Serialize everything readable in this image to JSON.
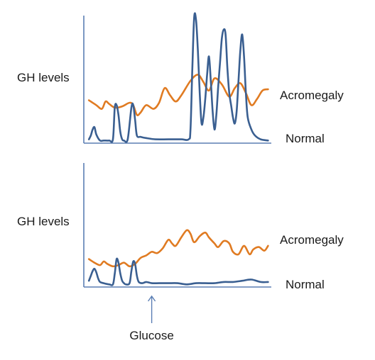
{
  "colors": {
    "normal": "#3a5f91",
    "acromegaly": "#e07b22",
    "axis": "#5b7fb4",
    "arrow": "#5b7fb4"
  },
  "chart_data": [
    {
      "type": "line",
      "ylabel": "GH levels",
      "xlim": [
        0,
        100
      ],
      "ylim": [
        0,
        100
      ],
      "series": [
        {
          "name": "Acromegaly",
          "color_key": "acromegaly",
          "points": [
            [
              2,
              34
            ],
            [
              6,
              30
            ],
            [
              9,
              27
            ],
            [
              11,
              33
            ],
            [
              13,
              31
            ],
            [
              16,
              28
            ],
            [
              20,
              29
            ],
            [
              24,
              32
            ],
            [
              26,
              30
            ],
            [
              28,
              22
            ],
            [
              30,
              24
            ],
            [
              33,
              30
            ],
            [
              37,
              27
            ],
            [
              40,
              32
            ],
            [
              43,
              44
            ],
            [
              46,
              38
            ],
            [
              49,
              33
            ],
            [
              52,
              38
            ],
            [
              57,
              50
            ],
            [
              61,
              55
            ],
            [
              64,
              49
            ],
            [
              67,
              42
            ],
            [
              70,
              52
            ],
            [
              74,
              47
            ],
            [
              78,
              37
            ],
            [
              81,
              44
            ],
            [
              84,
              48
            ],
            [
              87,
              40
            ],
            [
              90,
              30
            ],
            [
              93,
              35
            ],
            [
              96,
              42
            ],
            [
              99,
              43
            ]
          ]
        },
        {
          "name": "Normal",
          "color_key": "normal",
          "points": [
            [
              2,
              2
            ],
            [
              3,
              5
            ],
            [
              4,
              10
            ],
            [
              5,
              12
            ],
            [
              6,
              6
            ],
            [
              8,
              1
            ],
            [
              10,
              1
            ],
            [
              13,
              1
            ],
            [
              15,
              2
            ],
            [
              16,
              28
            ],
            [
              17,
              30
            ],
            [
              18,
              22
            ],
            [
              19,
              8
            ],
            [
              20,
              2
            ],
            [
              21,
              1
            ],
            [
              23,
              2
            ],
            [
              25,
              28
            ],
            [
              26,
              30
            ],
            [
              27,
              18
            ],
            [
              28,
              5
            ],
            [
              30,
              4
            ],
            [
              33,
              3
            ],
            [
              38,
              2
            ],
            [
              45,
              2
            ],
            [
              52,
              2
            ],
            [
              56,
              2
            ],
            [
              57,
              10
            ],
            [
              58,
              60
            ],
            [
              59,
              102
            ],
            [
              60,
              100
            ],
            [
              61,
              75
            ],
            [
              62,
              40
            ],
            [
              63,
              15
            ],
            [
              64,
              20
            ],
            [
              65,
              35
            ],
            [
              66,
              55
            ],
            [
              67,
              70
            ],
            [
              68,
              50
            ],
            [
              69,
              25
            ],
            [
              70,
              10
            ],
            [
              71,
              22
            ],
            [
              72,
              45
            ],
            [
              73,
              65
            ],
            [
              74,
              85
            ],
            [
              75,
              92
            ],
            [
              76,
              88
            ],
            [
              77,
              60
            ],
            [
              78,
              40
            ],
            [
              79,
              30
            ],
            [
              80,
              20
            ],
            [
              81,
              15
            ],
            [
              82,
              25
            ],
            [
              83,
              50
            ],
            [
              84,
              75
            ],
            [
              85,
              88
            ],
            [
              86,
              70
            ],
            [
              87,
              40
            ],
            [
              88,
              20
            ],
            [
              90,
              10
            ],
            [
              92,
              5
            ],
            [
              95,
              2
            ],
            [
              99,
              1
            ]
          ]
        }
      ]
    },
    {
      "type": "line",
      "ylabel": "GH levels",
      "xlim": [
        0,
        100
      ],
      "ylim": [
        0,
        100
      ],
      "annotation": "Glucose",
      "annotation_x": 36,
      "series": [
        {
          "name": "Acromegaly",
          "color_key": "acromegaly",
          "points": [
            [
              2,
              22
            ],
            [
              5,
              19
            ],
            [
              8,
              17
            ],
            [
              10,
              20
            ],
            [
              12,
              18
            ],
            [
              15,
              16
            ],
            [
              18,
              17
            ],
            [
              21,
              19
            ],
            [
              24,
              16
            ],
            [
              27,
              18
            ],
            [
              30,
              23
            ],
            [
              33,
              25
            ],
            [
              36,
              28
            ],
            [
              39,
              27
            ],
            [
              42,
              31
            ],
            [
              45,
              38
            ],
            [
              47,
              35
            ],
            [
              49,
              33
            ],
            [
              52,
              40
            ],
            [
              55,
              46
            ],
            [
              57,
              43
            ],
            [
              59,
              36
            ],
            [
              62,
              41
            ],
            [
              65,
              44
            ],
            [
              67,
              40
            ],
            [
              70,
              35
            ],
            [
              72,
              32
            ],
            [
              75,
              37
            ],
            [
              78,
              35
            ],
            [
              80,
              28
            ],
            [
              83,
              26
            ],
            [
              86,
              33
            ],
            [
              89,
              26
            ],
            [
              91,
              30
            ],
            [
              94,
              32
            ],
            [
              97,
              29
            ],
            [
              99,
              33
            ]
          ]
        },
        {
          "name": "Normal",
          "color_key": "normal",
          "points": [
            [
              2,
              4
            ],
            [
              3,
              8
            ],
            [
              4,
              12
            ],
            [
              5,
              14
            ],
            [
              6,
              11
            ],
            [
              7,
              6
            ],
            [
              8,
              3
            ],
            [
              10,
              2
            ],
            [
              13,
              1
            ],
            [
              15,
              1
            ],
            [
              16,
              10
            ],
            [
              17,
              22
            ],
            [
              18,
              19
            ],
            [
              19,
              10
            ],
            [
              20,
              4
            ],
            [
              21,
              2
            ],
            [
              22,
              1
            ],
            [
              24,
              2
            ],
            [
              25,
              12
            ],
            [
              26,
              20
            ],
            [
              27,
              18
            ],
            [
              28,
              8
            ],
            [
              29,
              3
            ],
            [
              31,
              2
            ],
            [
              33,
              3
            ],
            [
              36,
              2
            ],
            [
              40,
              2
            ],
            [
              45,
              2
            ],
            [
              50,
              2
            ],
            [
              55,
              1
            ],
            [
              60,
              2
            ],
            [
              65,
              2
            ],
            [
              70,
              2
            ],
            [
              75,
              3
            ],
            [
              80,
              3
            ],
            [
              85,
              4
            ],
            [
              90,
              5
            ],
            [
              95,
              3
            ],
            [
              99,
              3
            ]
          ]
        }
      ]
    }
  ]
}
